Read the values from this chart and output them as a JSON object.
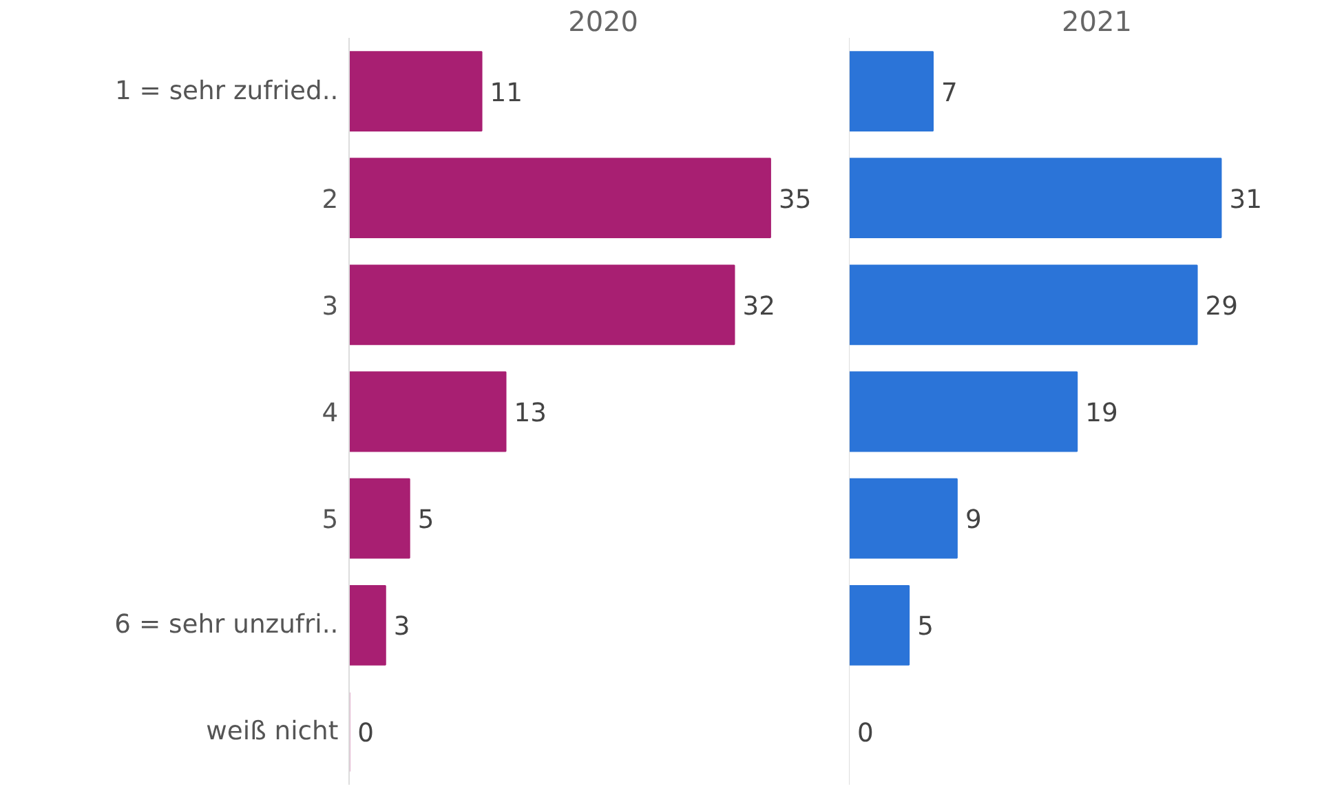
{
  "chart_data": [
    {
      "type": "bar",
      "orientation": "horizontal",
      "title": "2020",
      "categories": [
        "1 = sehr zufried..",
        "2",
        "3",
        "4",
        "5",
        "6 = sehr unzufri..",
        "weiß nicht"
      ],
      "values": [
        11,
        35,
        32,
        13,
        5,
        3,
        0
      ],
      "color": "#a81f72",
      "data_labels": true,
      "tick_labels": "y"
    },
    {
      "type": "bar",
      "orientation": "horizontal",
      "title": "2021",
      "categories": [
        null,
        null,
        null,
        null,
        null,
        null,
        null
      ],
      "values": [
        7,
        31,
        29,
        19,
        9,
        5,
        0
      ],
      "color": "#2b74d8",
      "data_labels": true,
      "tick_labels": false
    }
  ]
}
